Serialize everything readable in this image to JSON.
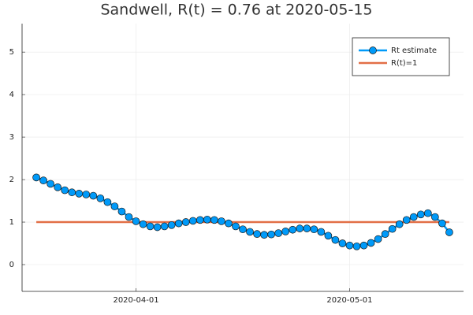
{
  "chart_data": {
    "type": "line",
    "title": "Sandwell, R(t) = 0.76 at 2020-05-15",
    "x": [
      "2020-03-18",
      "2020-03-19",
      "2020-03-20",
      "2020-03-21",
      "2020-03-22",
      "2020-03-23",
      "2020-03-24",
      "2020-03-25",
      "2020-03-26",
      "2020-03-27",
      "2020-03-28",
      "2020-03-29",
      "2020-03-30",
      "2020-03-31",
      "2020-04-01",
      "2020-04-02",
      "2020-04-03",
      "2020-04-04",
      "2020-04-05",
      "2020-04-06",
      "2020-04-07",
      "2020-04-08",
      "2020-04-09",
      "2020-04-10",
      "2020-04-11",
      "2020-04-12",
      "2020-04-13",
      "2020-04-14",
      "2020-04-15",
      "2020-04-16",
      "2020-04-17",
      "2020-04-18",
      "2020-04-19",
      "2020-04-20",
      "2020-04-21",
      "2020-04-22",
      "2020-04-23",
      "2020-04-24",
      "2020-04-25",
      "2020-04-26",
      "2020-04-27",
      "2020-04-28",
      "2020-04-29",
      "2020-04-30",
      "2020-05-01",
      "2020-05-02",
      "2020-05-03",
      "2020-05-04",
      "2020-05-05",
      "2020-05-06",
      "2020-05-07",
      "2020-05-08",
      "2020-05-09",
      "2020-05-10",
      "2020-05-11",
      "2020-05-12",
      "2020-05-13",
      "2020-05-14",
      "2020-05-15"
    ],
    "series": [
      {
        "name": "Rt estimate",
        "color": "#009af9",
        "markers": true,
        "values": [
          2.05,
          1.98,
          1.9,
          1.82,
          1.75,
          1.7,
          1.67,
          1.65,
          1.62,
          1.56,
          1.47,
          1.37,
          1.25,
          1.12,
          1.02,
          0.95,
          0.9,
          0.88,
          0.9,
          0.93,
          0.97,
          1.0,
          1.03,
          1.05,
          1.06,
          1.05,
          1.02,
          0.97,
          0.9,
          0.83,
          0.77,
          0.72,
          0.7,
          0.71,
          0.74,
          0.78,
          0.82,
          0.85,
          0.85,
          0.83,
          0.77,
          0.68,
          0.58,
          0.5,
          0.45,
          0.43,
          0.45,
          0.51,
          0.6,
          0.72,
          0.84,
          0.95,
          1.05,
          1.12,
          1.18,
          1.21,
          1.12,
          0.97,
          0.76
        ]
      },
      {
        "name": "R(t)=1",
        "color": "#e26f46",
        "markers": false,
        "values": [
          1,
          1,
          1,
          1,
          1,
          1,
          1,
          1,
          1,
          1,
          1,
          1,
          1,
          1,
          1,
          1,
          1,
          1,
          1,
          1,
          1,
          1,
          1,
          1,
          1,
          1,
          1,
          1,
          1,
          1,
          1,
          1,
          1,
          1,
          1,
          1,
          1,
          1,
          1,
          1,
          1,
          1,
          1,
          1,
          1,
          1,
          1,
          1,
          1,
          1,
          1,
          1,
          1,
          1,
          1,
          1,
          1,
          1,
          1
        ]
      }
    ],
    "xlim": [
      "2020-03-16",
      "2020-05-17"
    ],
    "xticks": [
      "2020-04-01",
      "2020-05-01"
    ],
    "ylim": [
      -0.63,
      5.67
    ],
    "yticks": [
      0,
      1,
      2,
      3,
      4,
      5
    ],
    "grid": true,
    "legend": "top-right"
  }
}
